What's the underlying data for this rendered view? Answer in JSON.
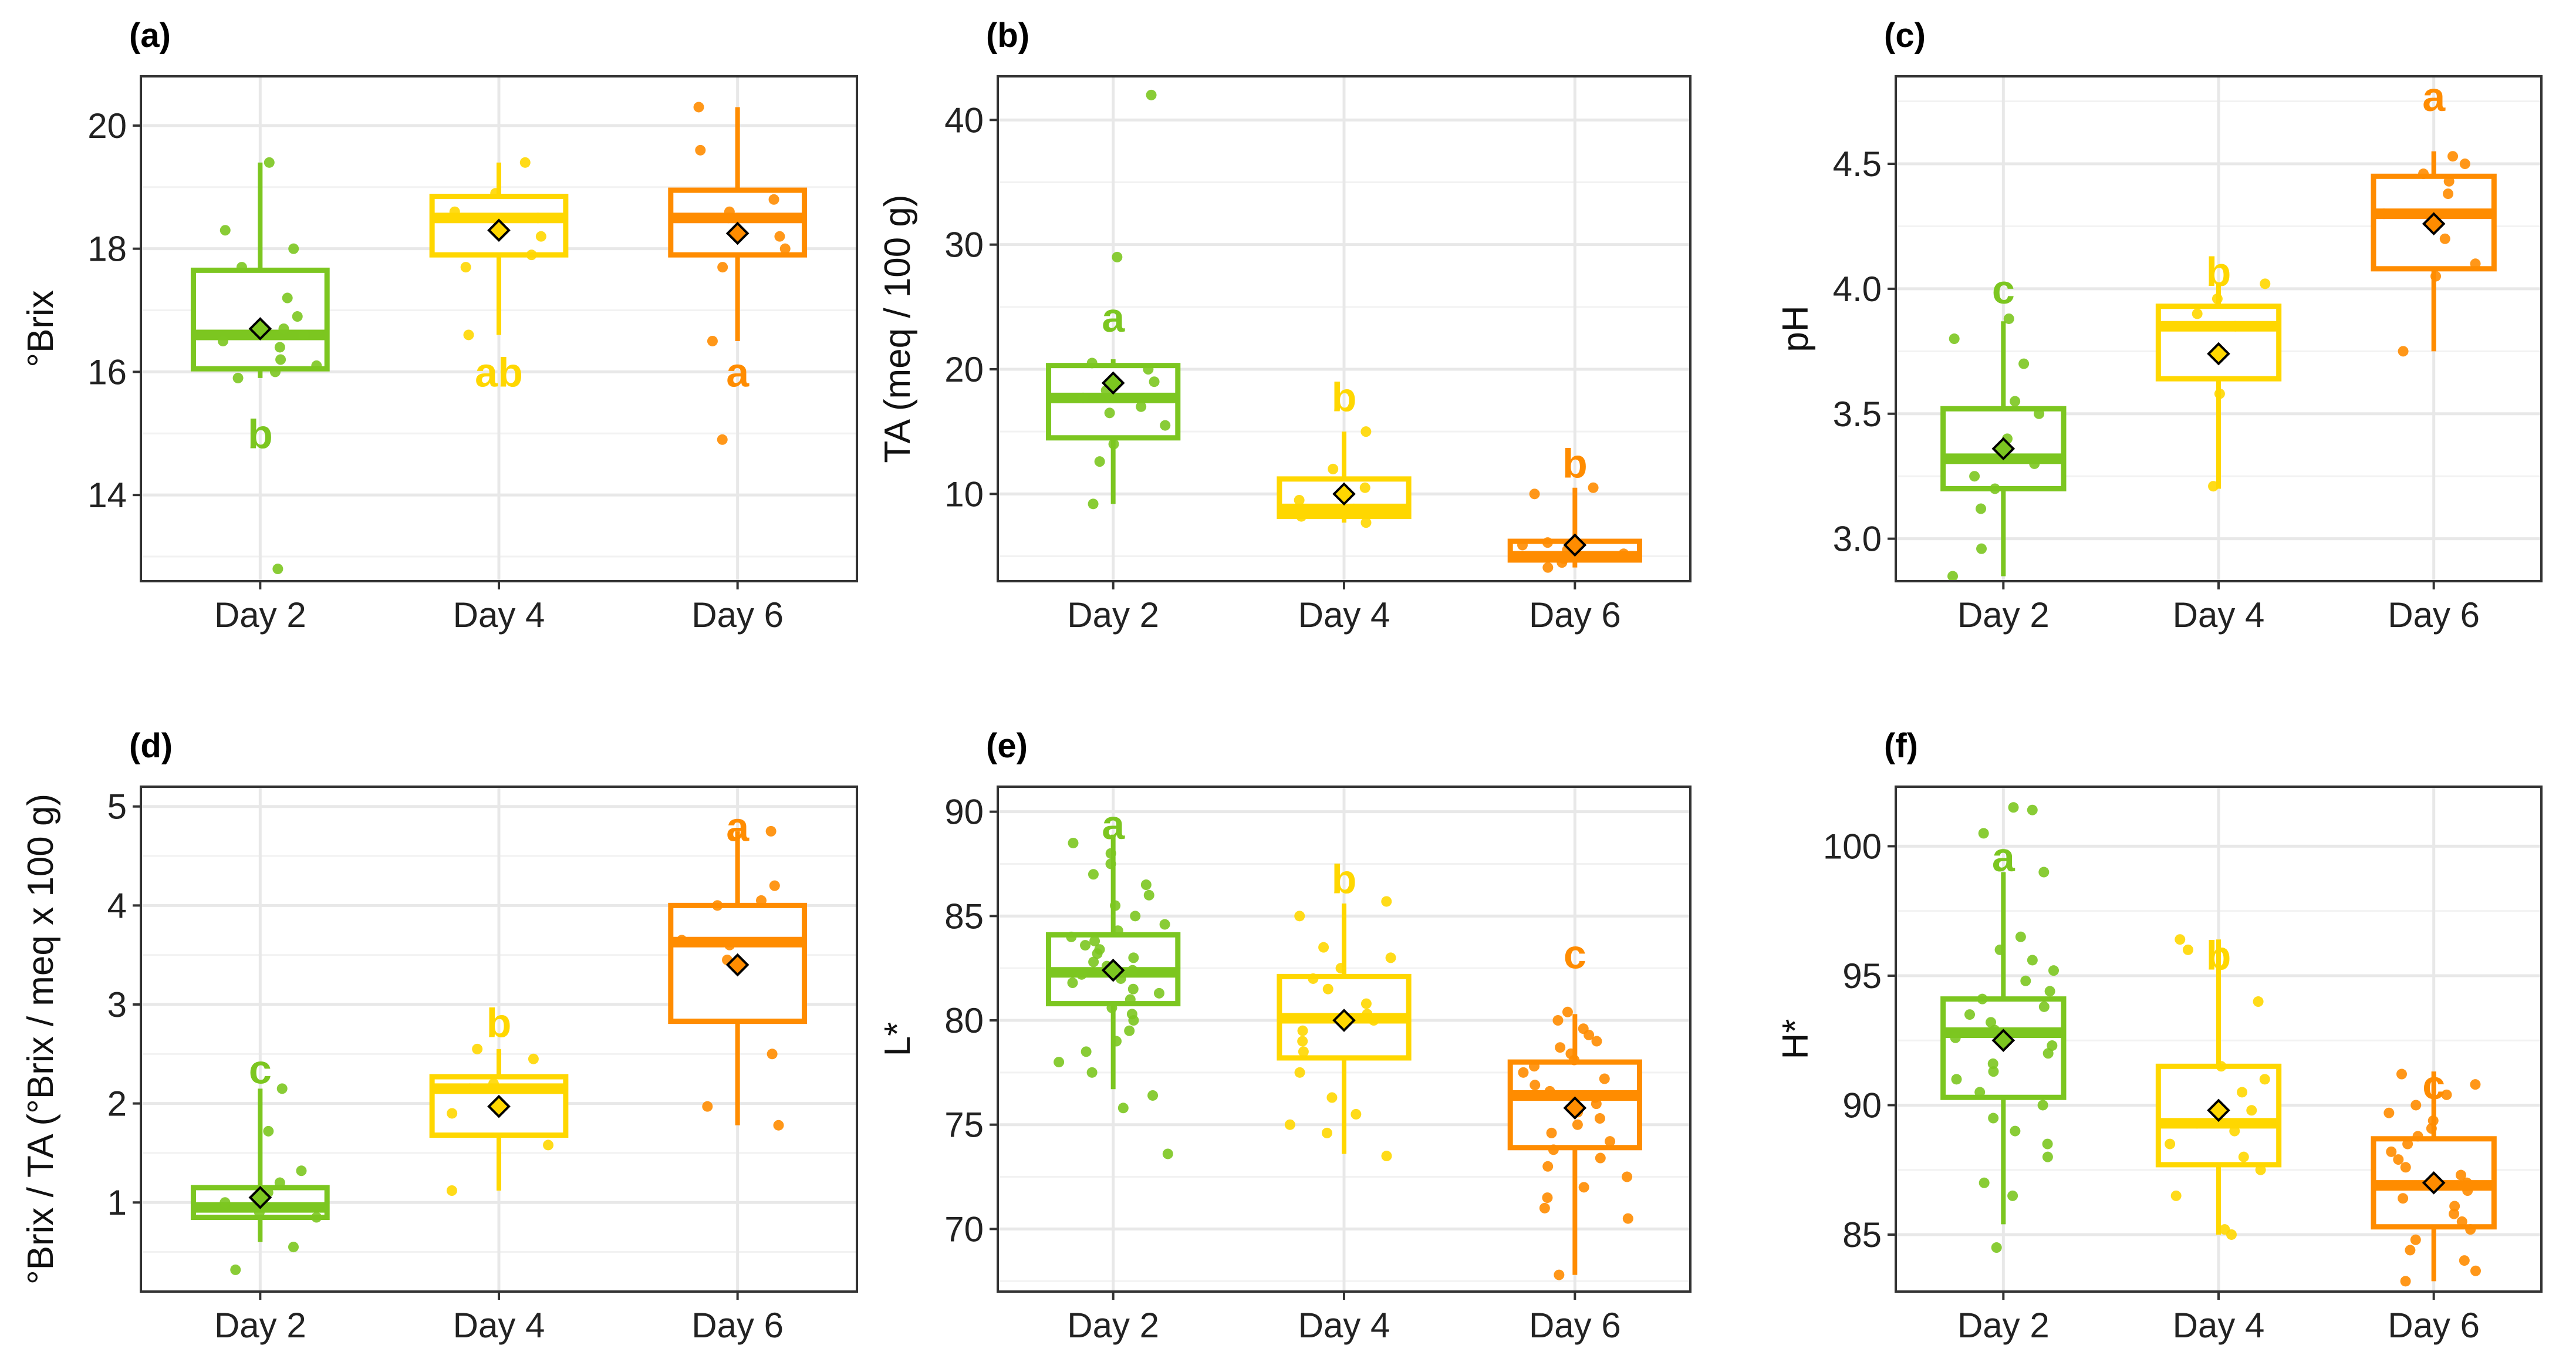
{
  "colors": {
    "day2": "#7cc620",
    "day4": "#ffd700",
    "day6": "#ff8c00",
    "mean_marker": "#000000",
    "grid": "#e8e8e8",
    "frame": "#333333"
  },
  "chart_data": [
    {
      "id": "a",
      "panel_label": "(a)",
      "type": "box",
      "ylabel": "°Brix",
      "ylim": [
        12.6,
        20.8
      ],
      "yticks": [
        {
          "value": 14,
          "label": "14"
        },
        {
          "value": 16,
          "label": "16"
        },
        {
          "value": 18,
          "label": "18"
        },
        {
          "value": 20,
          "label": "20"
        }
      ],
      "categories": [
        "Day 2",
        "Day 4",
        "Day 6"
      ],
      "boxes": [
        {
          "q1": 16.05,
          "median": 16.6,
          "q3": 17.65,
          "low": 15.9,
          "high": 19.4,
          "mean": 16.7,
          "letter": "b",
          "letter_y": 15.0,
          "points": [
            12.8,
            15.9,
            16.0,
            16.1,
            16.2,
            16.4,
            16.5,
            16.6,
            16.7,
            16.9,
            17.2,
            17.7,
            18.0,
            18.3,
            19.4
          ]
        },
        {
          "q1": 17.9,
          "median": 18.5,
          "q3": 18.85,
          "low": 16.6,
          "high": 19.4,
          "mean": 18.3,
          "letter": "ab",
          "letter_y": 16.0,
          "points": [
            16.6,
            17.7,
            17.9,
            18.2,
            18.5,
            18.6,
            18.9,
            19.4
          ]
        },
        {
          "q1": 17.9,
          "median": 18.5,
          "q3": 18.95,
          "low": 16.5,
          "high": 20.3,
          "mean": 18.25,
          "letter": "a",
          "letter_y": 16.0,
          "points": [
            14.9,
            16.5,
            17.7,
            18.0,
            18.2,
            18.5,
            18.6,
            18.8,
            19.6,
            20.3
          ]
        }
      ]
    },
    {
      "id": "b",
      "panel_label": "(b)",
      "type": "box",
      "ylabel": "TA (meq / 100 g)",
      "ylim": [
        3,
        43.5
      ],
      "yticks": [
        {
          "value": 10,
          "label": "10"
        },
        {
          "value": 20,
          "label": "20"
        },
        {
          "value": 30,
          "label": "30"
        },
        {
          "value": 40,
          "label": "40"
        }
      ],
      "categories": [
        "Day 2",
        "Day 4",
        "Day 6"
      ],
      "boxes": [
        {
          "q1": 14.5,
          "median": 17.7,
          "q3": 20.3,
          "low": 9.2,
          "high": 20.8,
          "mean": 18.9,
          "letter": "a",
          "letter_y": 24.2,
          "points": [
            9.2,
            12.6,
            14.0,
            15.5,
            16.5,
            17.0,
            17.7,
            18.3,
            19.0,
            20.0,
            20.5,
            29.0,
            42.0
          ]
        },
        {
          "q1": 8.2,
          "median": 8.8,
          "q3": 11.2,
          "low": 7.7,
          "high": 15.0,
          "mean": 10.0,
          "letter": "b",
          "letter_y": 17.8,
          "points": [
            7.7,
            8.2,
            8.8,
            9.5,
            10.5,
            12.0,
            15.0
          ]
        },
        {
          "q1": 4.7,
          "median": 5.0,
          "q3": 6.2,
          "low": 4.1,
          "high": 10.5,
          "mean": 5.9,
          "letter": "b",
          "letter_y": 12.5,
          "points": [
            4.1,
            4.5,
            4.8,
            5.0,
            5.2,
            5.5,
            5.9,
            6.1,
            10.0,
            10.5
          ]
        }
      ]
    },
    {
      "id": "c",
      "panel_label": "(c)",
      "type": "box",
      "ylabel": "pH",
      "ylim": [
        2.83,
        4.85
      ],
      "yticks": [
        {
          "value": 3.0,
          "label": "3.0"
        },
        {
          "value": 3.5,
          "label": "3.5"
        },
        {
          "value": 4.0,
          "label": "4.0"
        },
        {
          "value": 4.5,
          "label": "4.5"
        }
      ],
      "categories": [
        "Day 2",
        "Day 4",
        "Day 6"
      ],
      "boxes": [
        {
          "q1": 3.2,
          "median": 3.32,
          "q3": 3.52,
          "low": 2.85,
          "high": 3.87,
          "mean": 3.36,
          "letter": "c",
          "letter_y": 4.0,
          "points": [
            2.85,
            2.96,
            3.12,
            3.2,
            3.25,
            3.3,
            3.35,
            3.4,
            3.5,
            3.55,
            3.7,
            3.8,
            3.88
          ]
        },
        {
          "q1": 3.64,
          "median": 3.85,
          "q3": 3.93,
          "low": 3.2,
          "high": 4.02,
          "mean": 3.74,
          "letter": "b",
          "letter_y": 4.07,
          "points": [
            3.21,
            3.58,
            3.85,
            3.9,
            3.96,
            4.02
          ]
        },
        {
          "q1": 4.08,
          "median": 4.3,
          "q3": 4.45,
          "low": 3.75,
          "high": 4.55,
          "mean": 4.26,
          "letter": "a",
          "letter_y": 4.77,
          "points": [
            3.75,
            4.05,
            4.1,
            4.2,
            4.3,
            4.38,
            4.43,
            4.46,
            4.5,
            4.53
          ]
        }
      ]
    },
    {
      "id": "d",
      "panel_label": "(d)",
      "type": "box",
      "ylabel": "°Brix / TA (°Brix / meq x 100 g)",
      "ylim": [
        0.1,
        5.2
      ],
      "yticks": [
        {
          "value": 1,
          "label": "1"
        },
        {
          "value": 2,
          "label": "2"
        },
        {
          "value": 3,
          "label": "3"
        },
        {
          "value": 4,
          "label": "4"
        },
        {
          "value": 5,
          "label": "5"
        }
      ],
      "categories": [
        "Day 2",
        "Day 4",
        "Day 6"
      ],
      "boxes": [
        {
          "q1": 0.85,
          "median": 0.95,
          "q3": 1.15,
          "low": 0.6,
          "high": 2.15,
          "mean": 1.05,
          "letter": "c",
          "letter_y": 2.35,
          "points": [
            0.32,
            0.55,
            0.85,
            0.9,
            1.0,
            1.1,
            1.2,
            1.32,
            1.72,
            2.15
          ]
        },
        {
          "q1": 1.68,
          "median": 2.15,
          "q3": 2.27,
          "low": 1.12,
          "high": 2.55,
          "mean": 1.97,
          "letter": "b",
          "letter_y": 2.82,
          "points": [
            1.12,
            1.58,
            1.9,
            2.15,
            2.2,
            2.45,
            2.55
          ]
        },
        {
          "q1": 2.83,
          "median": 3.63,
          "q3": 4.0,
          "low": 1.78,
          "high": 4.75,
          "mean": 3.4,
          "letter": "a",
          "letter_y": 4.8,
          "points": [
            1.78,
            1.97,
            2.5,
            3.45,
            3.6,
            3.65,
            4.0,
            4.05,
            4.2,
            4.75
          ]
        }
      ]
    },
    {
      "id": "e",
      "panel_label": "(e)",
      "type": "box",
      "ylabel": "L*",
      "ylim": [
        67.0,
        91.2
      ],
      "yticks": [
        {
          "value": 70,
          "label": "70"
        },
        {
          "value": 75,
          "label": "75"
        },
        {
          "value": 80,
          "label": "80"
        },
        {
          "value": 85,
          "label": "85"
        },
        {
          "value": 90,
          "label": "90"
        }
      ],
      "categories": [
        "Day 2",
        "Day 4",
        "Day 6"
      ],
      "boxes": [
        {
          "q1": 80.8,
          "median": 82.3,
          "q3": 84.1,
          "low": 76.7,
          "high": 88.9,
          "mean": 82.4,
          "letter": "a",
          "letter_y": 89.4,
          "points": [
            73.6,
            75.8,
            76.4,
            77.5,
            78.0,
            78.5,
            79.0,
            79.5,
            80.0,
            80.3,
            80.6,
            81.0,
            81.3,
            81.5,
            81.8,
            82.0,
            82.2,
            82.4,
            82.6,
            82.8,
            83.0,
            83.2,
            83.4,
            83.6,
            83.8,
            84.0,
            84.3,
            84.6,
            85.0,
            85.5,
            86.0,
            86.5,
            87.0,
            87.5,
            88.0,
            88.5
          ]
        },
        {
          "q1": 78.2,
          "median": 80.1,
          "q3": 82.1,
          "low": 73.6,
          "high": 85.6,
          "mean": 80.0,
          "letter": "b",
          "letter_y": 86.8,
          "points": [
            73.5,
            74.6,
            75.0,
            75.5,
            76.3,
            77.5,
            78.5,
            79.0,
            79.5,
            80.0,
            80.3,
            80.8,
            81.5,
            82.0,
            82.5,
            83.0,
            83.5,
            85.0,
            85.7
          ]
        },
        {
          "q1": 73.9,
          "median": 76.4,
          "q3": 78.0,
          "low": 67.8,
          "high": 80.3,
          "mean": 75.8,
          "letter": "c",
          "letter_y": 83.2,
          "points": [
            67.8,
            70.5,
            71.0,
            71.5,
            72.0,
            72.5,
            73.0,
            73.4,
            73.8,
            74.2,
            74.6,
            75.0,
            75.3,
            75.6,
            76.0,
            76.3,
            76.6,
            76.9,
            77.2,
            77.5,
            77.8,
            78.1,
            78.4,
            78.7,
            79.0,
            79.3,
            79.6,
            80.0,
            80.4
          ]
        }
      ]
    },
    {
      "id": "f",
      "panel_label": "(f)",
      "type": "box",
      "ylabel": "H*",
      "ylim": [
        82.8,
        102.3
      ],
      "yticks": [
        {
          "value": 85,
          "label": "85"
        },
        {
          "value": 90,
          "label": "90"
        },
        {
          "value": 95,
          "label": "95"
        },
        {
          "value": 100,
          "label": "100"
        }
      ],
      "categories": [
        "Day 2",
        "Day 4",
        "Day 6"
      ],
      "boxes": [
        {
          "q1": 90.3,
          "median": 92.8,
          "q3": 94.1,
          "low": 85.4,
          "high": 99.0,
          "mean": 92.5,
          "letter": "a",
          "letter_y": 99.6,
          "points": [
            84.5,
            86.5,
            87.0,
            88.0,
            88.5,
            89.0,
            89.5,
            90.0,
            90.5,
            91.0,
            91.3,
            91.6,
            92.0,
            92.3,
            92.6,
            92.9,
            93.2,
            93.5,
            93.8,
            94.1,
            94.4,
            94.8,
            95.2,
            95.6,
            96.0,
            96.5,
            99.0,
            100.5,
            101.4,
            101.5
          ]
        },
        {
          "q1": 87.7,
          "median": 89.3,
          "q3": 91.5,
          "low": 85.0,
          "high": 96.4,
          "mean": 89.8,
          "letter": "b",
          "letter_y": 95.8,
          "points": [
            85.0,
            85.2,
            86.5,
            87.5,
            88.0,
            88.5,
            89.0,
            89.3,
            89.8,
            90.5,
            91.0,
            91.5,
            94.0,
            96.0,
            96.4
          ]
        },
        {
          "q1": 85.3,
          "median": 86.9,
          "q3": 88.7,
          "low": 83.2,
          "high": 91.3,
          "mean": 87.0,
          "letter": "c",
          "letter_y": 90.8,
          "points": [
            83.2,
            83.6,
            84.0,
            84.4,
            84.8,
            85.2,
            85.5,
            85.8,
            86.1,
            86.4,
            86.7,
            87.0,
            87.3,
            87.6,
            87.9,
            88.2,
            88.5,
            88.8,
            89.1,
            89.4,
            89.7,
            90.0,
            90.4,
            90.8,
            91.2
          ]
        }
      ]
    }
  ]
}
